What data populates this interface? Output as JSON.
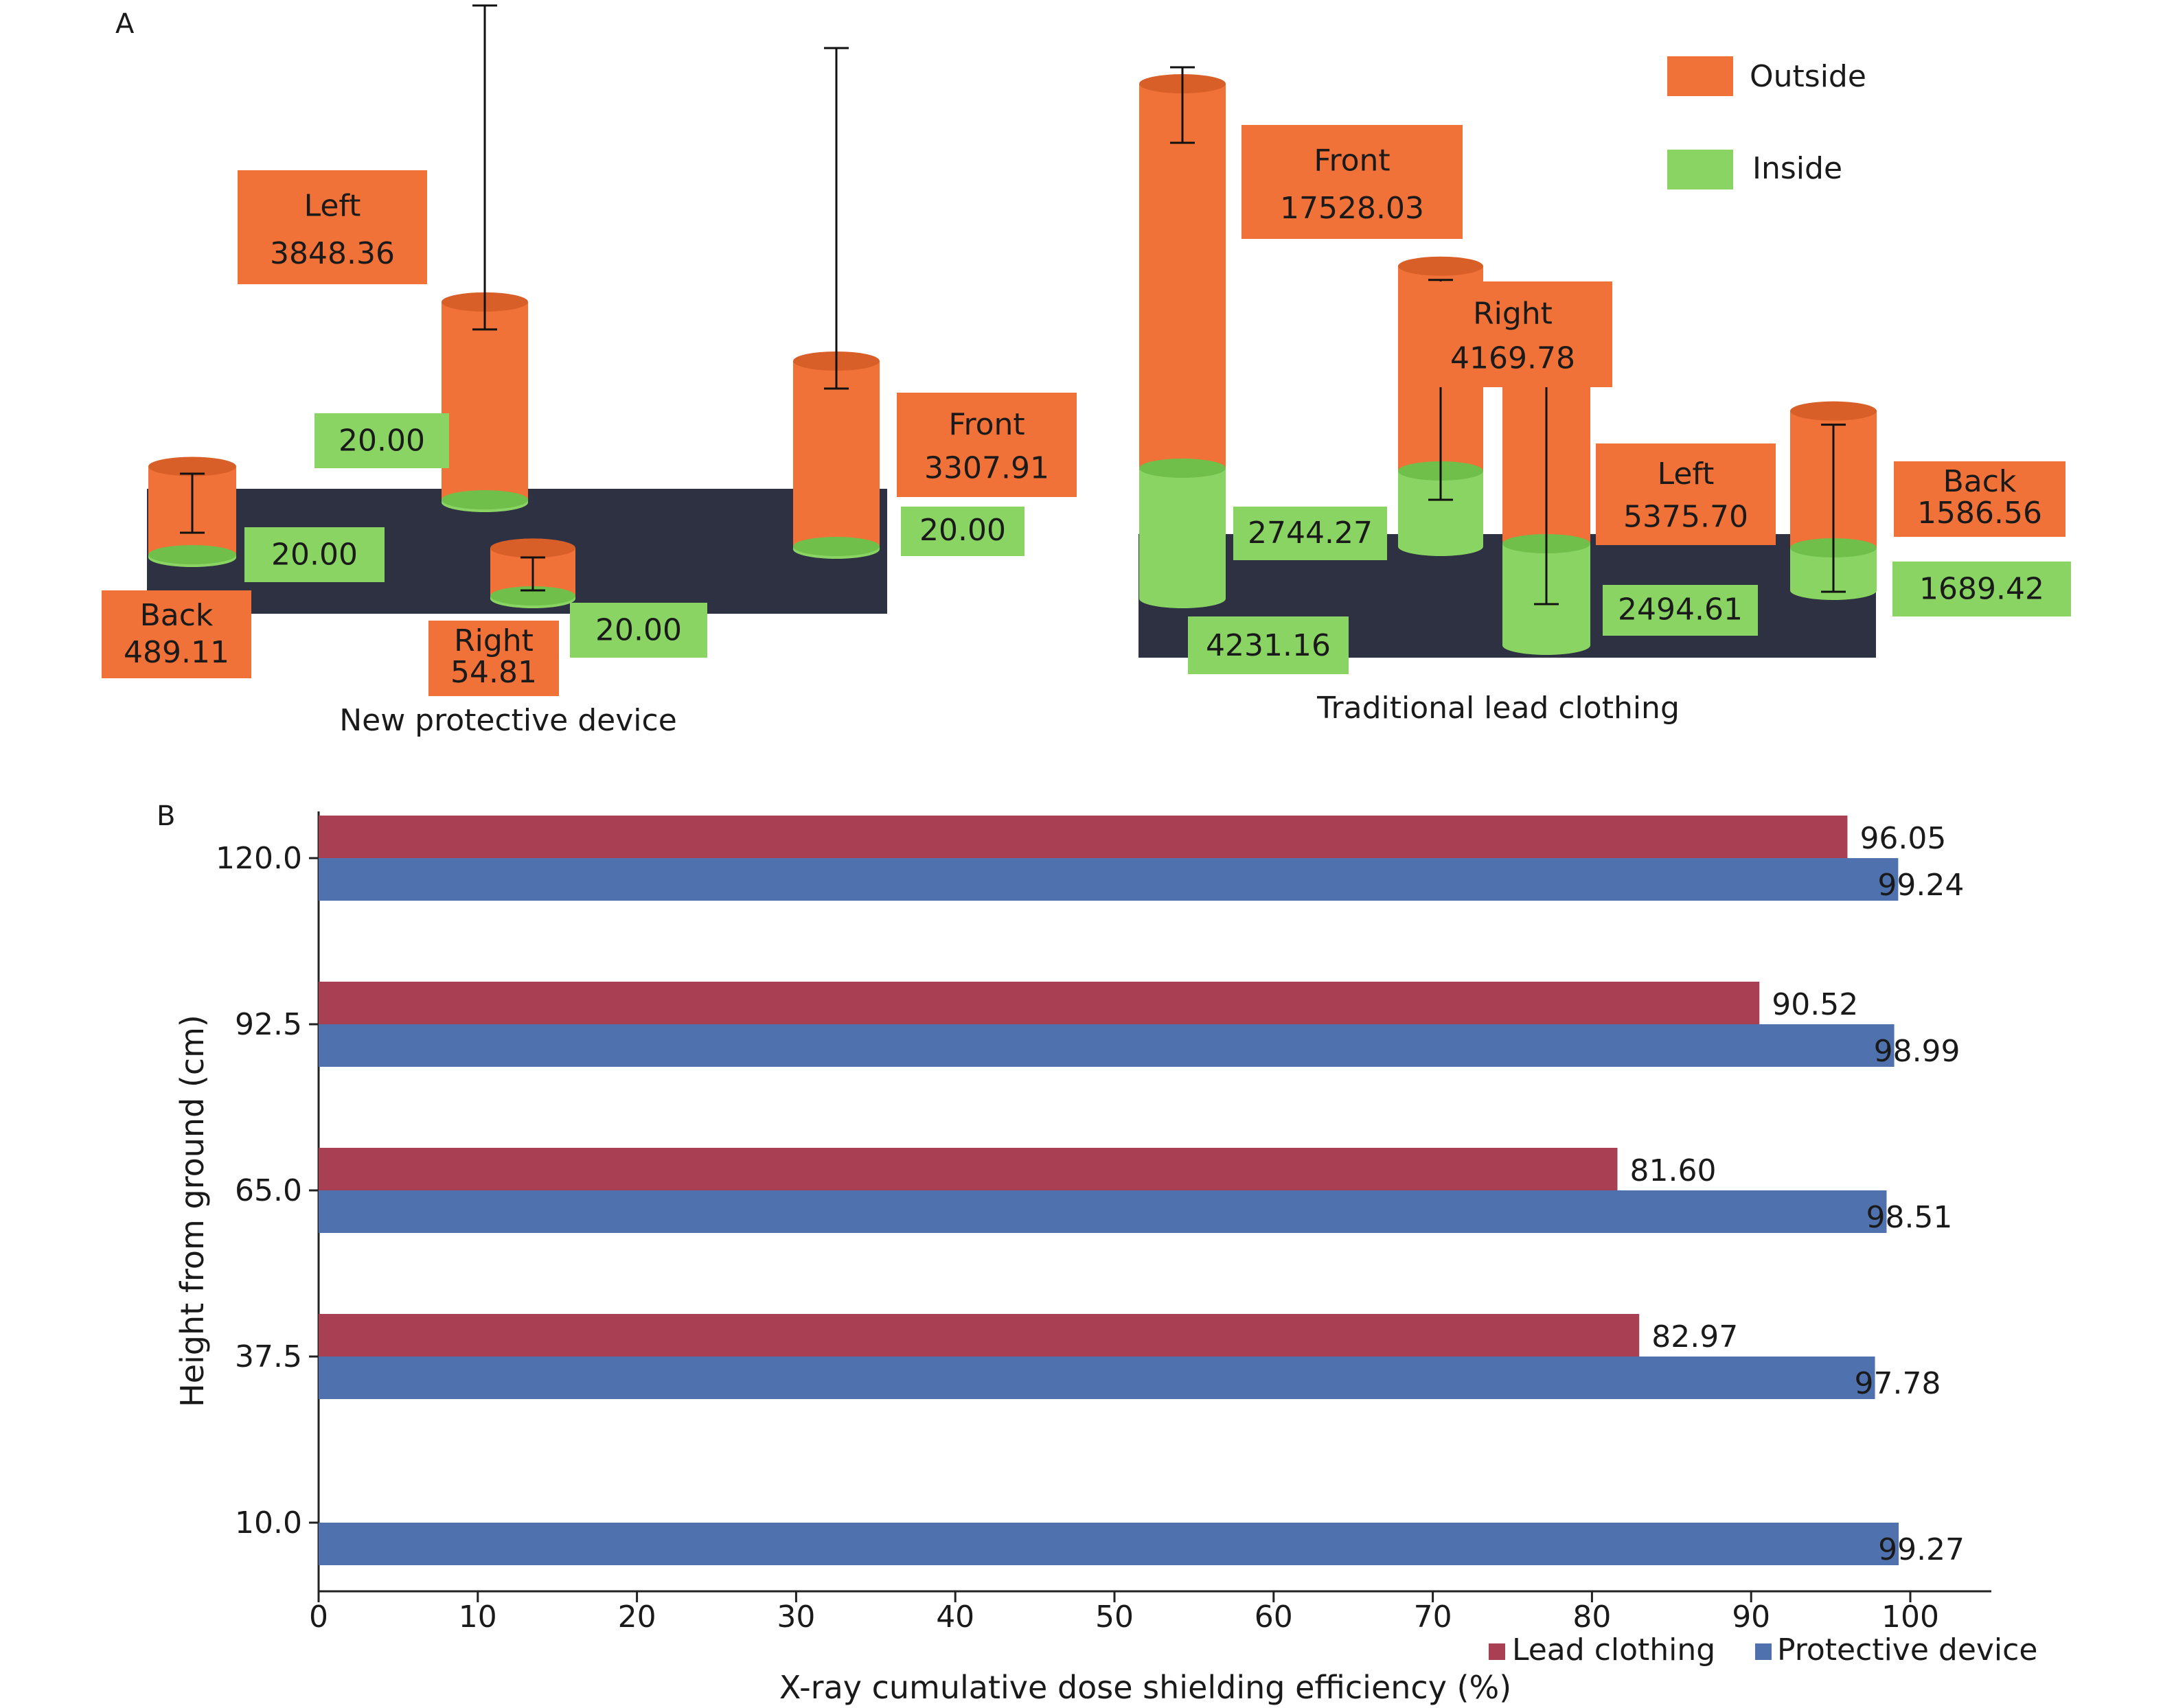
{
  "panel_labels": {
    "a": "A",
    "b": "B"
  },
  "legend_a": {
    "outside": "Outside",
    "inside": "Inside"
  },
  "colors": {
    "outside": "#f07238",
    "outside_top": "#d95f28",
    "inside": "#8ad463",
    "inside_top": "#6fbf4a",
    "platform": "#2d3142",
    "lead": "#a83f52",
    "device": "#4f72ae"
  },
  "chart_data": [
    {
      "type": "bar",
      "panel": "A",
      "groups": [
        {
          "name": "New protective device",
          "items": [
            {
              "position": "Left",
              "outside_label": "3848.36",
              "outside": 3848.36,
              "inside_label": "20.00",
              "inside": 20.0
            },
            {
              "position": "Front",
              "outside_label": "3307.91",
              "outside": 3307.91,
              "inside_label": "20.00",
              "inside": 20.0
            },
            {
              "position": "Back",
              "outside_label": "489.11",
              "outside": 489.11,
              "inside_label": "20.00",
              "inside": 20.0
            },
            {
              "position": "Right",
              "outside_label": "54.81",
              "outside": 54.81,
              "inside_label": "20.00",
              "inside": 20.0
            }
          ]
        },
        {
          "name": "Traditional lead clothing",
          "items": [
            {
              "position": "Front",
              "outside_label": "17528.03",
              "outside": 17528.03,
              "inside_label": "4231.16",
              "inside": 4231.16
            },
            {
              "position": "Right",
              "outside_label": "4169.78",
              "outside": 4169.78,
              "inside_label": "2744.27",
              "inside": 2744.27
            },
            {
              "position": "Left",
              "outside_label": "5375.70",
              "outside": 5375.7,
              "inside_label": "2494.61",
              "inside": 2494.61
            },
            {
              "position": "Back",
              "outside_label": "1586.56",
              "outside": 1586.56,
              "inside_label": "1689.42",
              "inside": 1689.42
            }
          ]
        }
      ]
    },
    {
      "type": "bar",
      "panel": "B",
      "orientation": "horizontal",
      "xlabel": "X-ray cumulative dose shielding efficiency (%)",
      "ylabel": "Height from ground (cm)",
      "xlim": [
        0,
        100
      ],
      "xticks": [
        "0",
        "10",
        "20",
        "30",
        "40",
        "50",
        "60",
        "70",
        "80",
        "90",
        "100"
      ],
      "categories": [
        "120.0",
        "92.5",
        "65.0",
        "37.5",
        "10.0"
      ],
      "series": [
        {
          "name": "Lead clothing",
          "values": [
            96.05,
            90.52,
            81.6,
            82.97,
            null
          ],
          "labels": [
            "96.05",
            "90.52",
            "81.60",
            "82.97",
            ""
          ]
        },
        {
          "name": "Protective device",
          "values": [
            99.24,
            98.99,
            98.51,
            97.78,
            99.27
          ],
          "labels": [
            "99.24",
            "98.99",
            "98.51",
            "97.78",
            "99.27"
          ]
        }
      ],
      "legend_position": "bottom-right"
    }
  ]
}
